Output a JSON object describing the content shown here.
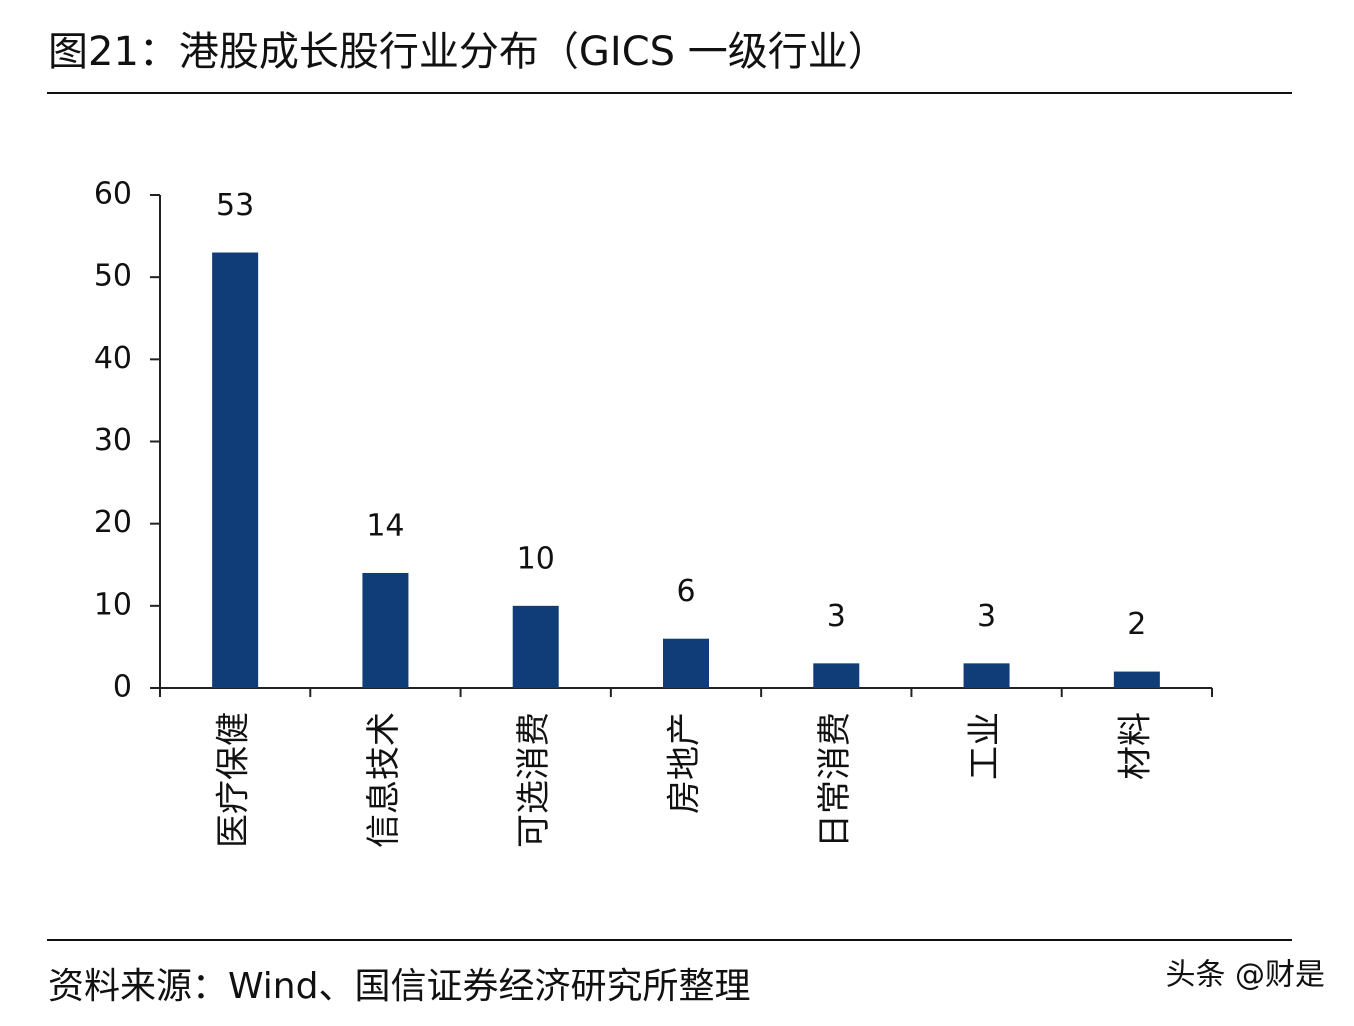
{
  "chart_data": {
    "type": "bar",
    "title": "图21：港股成长股行业分布（GICS 一级行业）",
    "categories": [
      "医疗保健",
      "信息技术",
      "可选消费",
      "房地产",
      "日常消费",
      "工业",
      "材料"
    ],
    "values": [
      53,
      14,
      10,
      6,
      3,
      3,
      2
    ],
    "color": "#103c78",
    "ylim": [
      0,
      60
    ],
    "yticks": [
      0,
      10,
      20,
      30,
      40,
      50,
      60
    ],
    "grid": false,
    "source": "资料来源：Wind、国信证券经济研究所整理",
    "watermark": "头条 @财是"
  }
}
